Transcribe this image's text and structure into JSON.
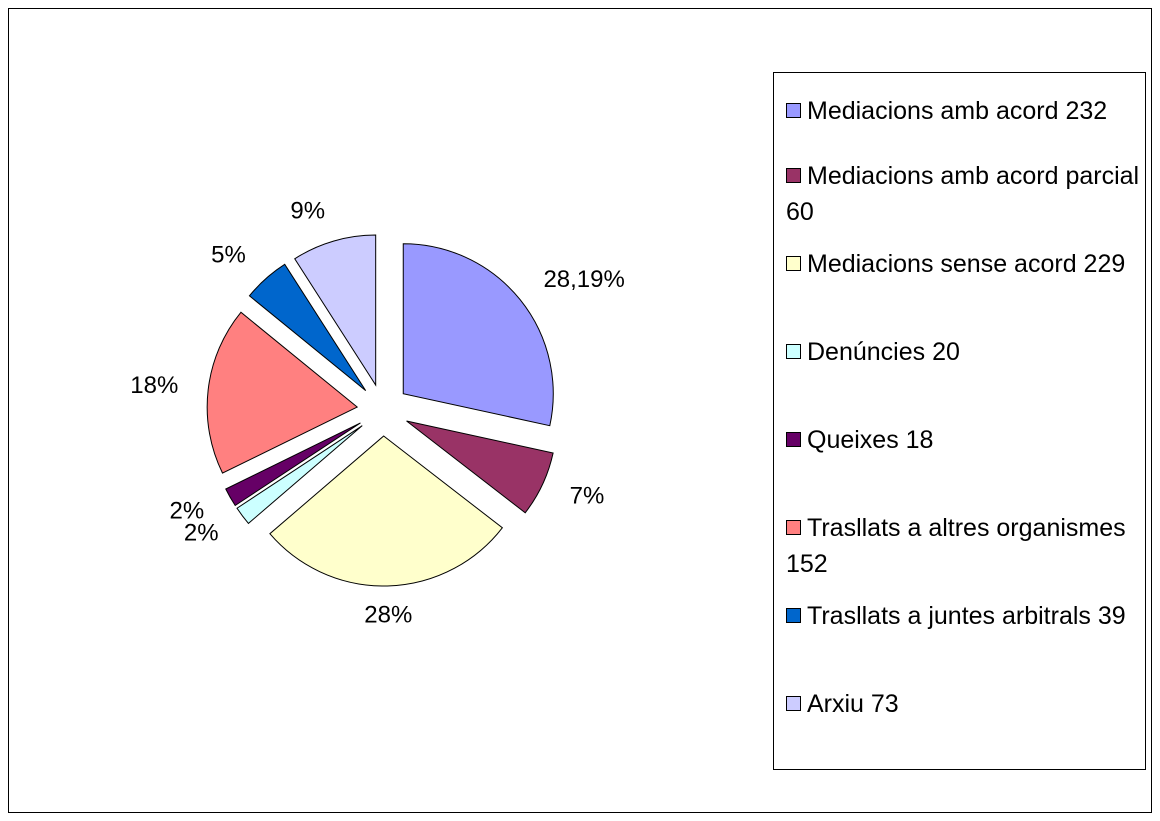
{
  "chart_data": {
    "type": "pie",
    "categories": [
      "Mediacions amb acord 232",
      "Mediacions amb acord parcial 60",
      "Mediacions sense acord 229",
      "Denúncies 20",
      "Queixes 18",
      "Trasllats a altres organismes 152",
      "Trasllats a juntes arbitrals 39",
      "Arxiu 73"
    ],
    "values": [
      28.19,
      7,
      28,
      2,
      2,
      18,
      5,
      9
    ],
    "value_labels": [
      "28,19%",
      "7%",
      "28%",
      "2%",
      "2%",
      "18%",
      "5%",
      "9%"
    ],
    "colors": [
      "#9999ff",
      "#993366",
      "#ffffcc",
      "#ccffff",
      "#660066",
      "#ff8080",
      "#0066cc",
      "#ccccff"
    ],
    "legend": "right"
  }
}
